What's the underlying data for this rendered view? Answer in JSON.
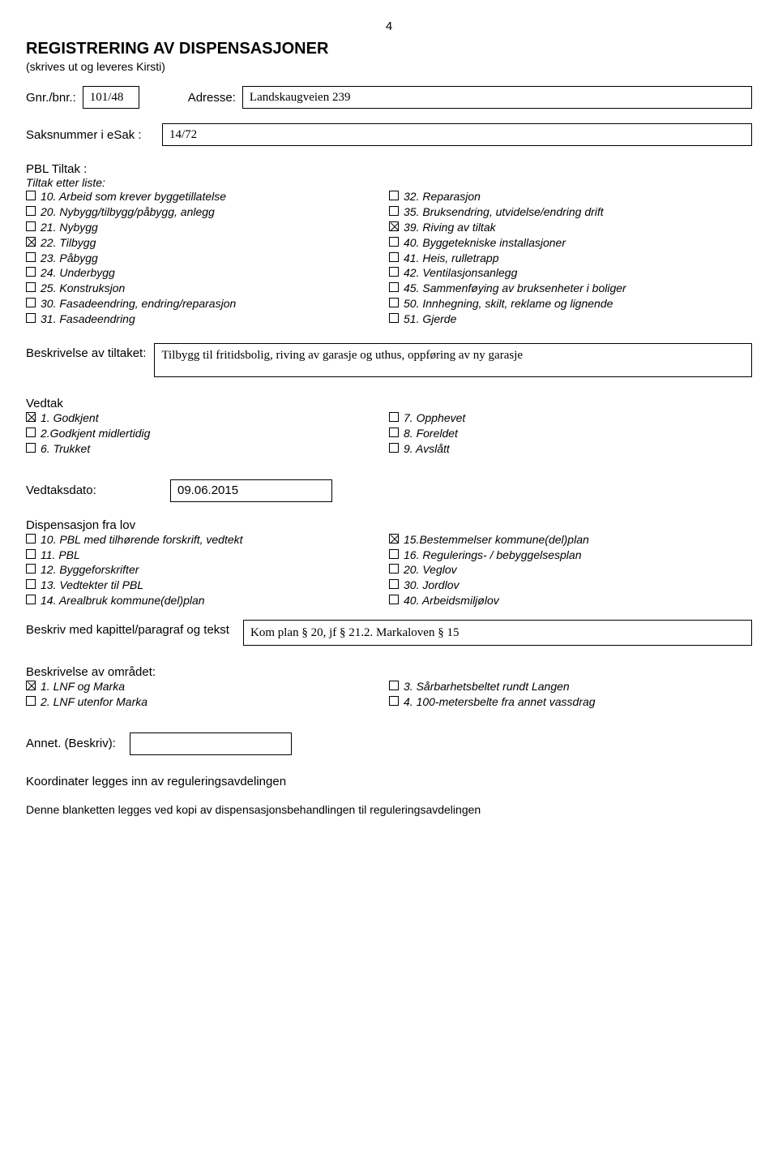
{
  "page_number": "4",
  "header": {
    "title": "REGISTRERING AV DISPENSASJONER",
    "subtitle": "(skrives ut og leveres Kirsti)"
  },
  "gnr": {
    "label": "Gnr./bnr.:",
    "value": "101/48",
    "address_label": "Adresse:",
    "address_value": "Landskaugveien 239"
  },
  "saksnummer": {
    "label": "Saksnummer i eSak :",
    "value": "14/72"
  },
  "pbl": {
    "title": "PBL Tiltak :",
    "subtitle": "Tiltak etter liste:",
    "left": [
      {
        "label": "10. Arbeid som krever byggetillatelse",
        "checked": false
      },
      {
        "label": "20. Nybygg/tilbygg/påbygg, anlegg",
        "checked": false
      },
      {
        "label": "21. Nybygg",
        "checked": false
      },
      {
        "label": "22. Tilbygg",
        "checked": true
      },
      {
        "label": "23. Påbygg",
        "checked": false
      },
      {
        "label": "24. Underbygg",
        "checked": false
      },
      {
        "label": "25. Konstruksjon",
        "checked": false
      },
      {
        "label": "30. Fasadeendring, endring/reparasjon",
        "checked": false
      },
      {
        "label": "31. Fasadeendring",
        "checked": false
      }
    ],
    "right": [
      {
        "label": "32. Reparasjon",
        "checked": false
      },
      {
        "label": "35. Bruksendring, utvidelse/endring drift",
        "checked": false
      },
      {
        "label": "39. Riving av tiltak",
        "checked": true
      },
      {
        "label": "40. Byggetekniske installasjoner",
        "checked": false
      },
      {
        "label": "41. Heis, rulletrapp",
        "checked": false
      },
      {
        "label": "42. Ventilasjonsanlegg",
        "checked": false
      },
      {
        "label": "45. Sammenføying av bruksenheter i boliger",
        "checked": false
      },
      {
        "label": "50. Innhegning, skilt, reklame og lignende",
        "checked": false
      },
      {
        "label": "51. Gjerde",
        "checked": false
      }
    ]
  },
  "beskrivelse_tiltak": {
    "label": "Beskrivelse av tiltaket:",
    "value": "Tilbygg til fritidsbolig, riving av garasje og uthus, oppføring av ny garasje"
  },
  "vedtak": {
    "title": "Vedtak",
    "left": [
      {
        "label": "1. Godkjent",
        "checked": true
      },
      {
        "label": "2.Godkjent midlertidig",
        "checked": false
      },
      {
        "label": "6. Trukket",
        "checked": false
      }
    ],
    "right": [
      {
        "label": "7. Opphevet",
        "checked": false
      },
      {
        "label": "8. Foreldet",
        "checked": false
      },
      {
        "label": "9. Avslått",
        "checked": false
      }
    ]
  },
  "vedtaksdato": {
    "label": "Vedtaksdato:",
    "value": "09.06.2015"
  },
  "dispensasjon": {
    "title": "Dispensasjon fra lov",
    "left": [
      {
        "label": "10. PBL med tilhørende forskrift, vedtekt",
        "checked": false
      },
      {
        "label": "11. PBL",
        "checked": false
      },
      {
        "label": "12. Byggeforskrifter",
        "checked": false
      },
      {
        "label": "13. Vedtekter til PBL",
        "checked": false
      },
      {
        "label": "14. Arealbruk kommune(del)plan",
        "checked": false
      }
    ],
    "right": [
      {
        "label": "15.Bestemmelser kommune(del)plan",
        "checked": true
      },
      {
        "label": "16. Regulerings- / bebyggelsesplan",
        "checked": false
      },
      {
        "label": "20. Veglov",
        "checked": false
      },
      {
        "label": "30. Jordlov",
        "checked": false
      },
      {
        "label": "40. Arbeidsmiljølov",
        "checked": false
      }
    ]
  },
  "beskriv_kapittel": {
    "label": "Beskriv med kapittel/paragraf og tekst",
    "value": "Kom plan § 20, jf § 21.2. Markaloven § 15"
  },
  "omradet": {
    "title": "Beskrivelse av området:",
    "left": [
      {
        "label": "1. LNF og Marka",
        "checked": true
      },
      {
        "label": "2. LNF utenfor Marka",
        "checked": false
      }
    ],
    "right": [
      {
        "label": "3. Sårbarhetsbeltet rundt Langen",
        "checked": false
      },
      {
        "label": "4. 100-metersbelte fra annet vassdrag",
        "checked": false
      }
    ]
  },
  "annet": {
    "label": "Annet. (Beskriv):"
  },
  "footer1": "Koordinater legges inn av reguleringsavdelingen",
  "footer2": "Denne blanketten legges ved kopi av dispensasjonsbehandlingen til reguleringsavdelingen"
}
